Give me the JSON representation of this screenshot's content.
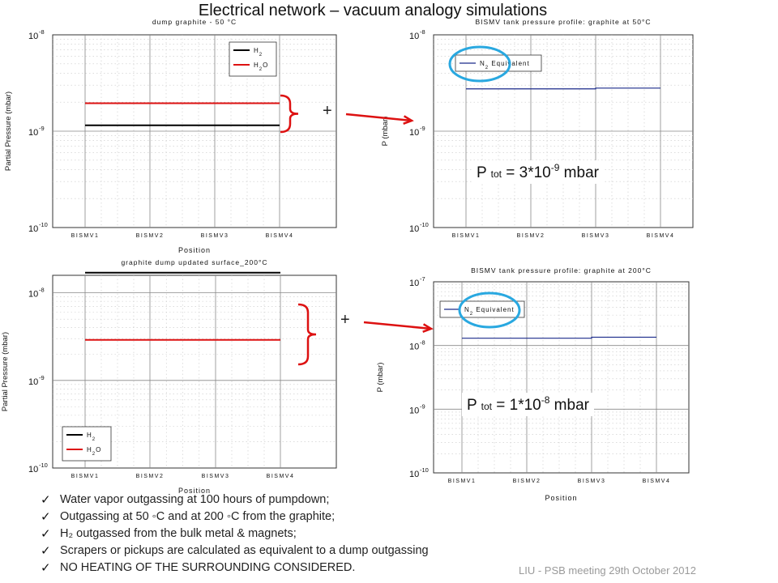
{
  "slide": {
    "title": "Electrical network – vacuum analogy simulations",
    "footer": "LIU - PSB meeting 29th October 2012",
    "plus_sign": "+",
    "ptot_top": {
      "p": "P",
      "sub": "tot",
      "eq": " = 3*10",
      "exp": "-9",
      "unit": " mbar"
    },
    "ptot_bottom": {
      "p": "P",
      "sub": "tot",
      "eq": " = 1*10",
      "exp": "-8",
      "unit": " mbar"
    },
    "bullets": [
      "Water vapor outgassing at 100 hours of pumpdown;",
      "Outgassing at 50 ◦C and at 200 ◦C from the graphite;",
      "H₂ outgassed from the bulk metal & magnets;",
      "Scrapers or pickups are calculated as equivalent to a dump outgassing",
      "NO HEATING OF THE SURROUNDING CONSIDERED."
    ],
    "check_glyph": "✓",
    "colors": {
      "h2": "#000000",
      "h2o": "#dd1111",
      "n2": "#1a2a8a",
      "arrow": "#dd1111",
      "circle": "#29a8e0"
    }
  },
  "chart_data": [
    {
      "type": "line",
      "title": "dump graphite - 50 °C",
      "xlabel": "Position",
      "ylabel": "Partial Pressure (mbar)",
      "y_scale": "log",
      "ylim_exp": [
        -10,
        -8
      ],
      "ytick_exps": [
        -10,
        -9,
        -8
      ],
      "categories": [
        "BISMV1",
        "BISMV2",
        "BISMV3",
        "BISMV4"
      ],
      "legend_position": "top-right",
      "series": [
        {
          "name": "H2",
          "legend": [
            "H",
            "2"
          ],
          "color": "#000000",
          "values": [
            1.15e-09,
            1.15e-09,
            1.15e-09,
            1.15e-09
          ]
        },
        {
          "name": "H2O",
          "legend": [
            "H",
            "2",
            "O"
          ],
          "color": "#dd1111",
          "values": [
            1.95e-09,
            1.95e-09,
            1.95e-09,
            1.95e-09
          ]
        }
      ]
    },
    {
      "type": "line",
      "title": "BISMV tank pressure profile: graphite at 50°C",
      "xlabel": "",
      "ylabel": "P (mbar)",
      "y_scale": "log",
      "ylim_exp": [
        -10,
        -8
      ],
      "ytick_exps": [
        -10,
        -9,
        -8
      ],
      "categories": [
        "BISMV1",
        "BISMV2",
        "BISMV3",
        "BISMV4"
      ],
      "legend_position": "top-left",
      "series": [
        {
          "name": "N2 Equivalent",
          "legend": [
            "N",
            "2",
            " Equivalent"
          ],
          "color": "#1a2a8a",
          "values": [
            2.75e-09,
            2.75e-09,
            2.8e-09,
            2.8e-09
          ]
        }
      ]
    },
    {
      "type": "line",
      "title": "graphite dump updated surface_200°C",
      "xlabel": "Position",
      "ylabel": "Partial Pressure (mbar)",
      "y_scale": "log",
      "ylim_exp": [
        -10,
        -7.8
      ],
      "ytick_exps": [
        -10,
        -9,
        -8
      ],
      "categories": [
        "BISMV1",
        "BISMV2",
        "BISMV3",
        "BISMV4"
      ],
      "legend_position": "bottom-left",
      "series": [
        {
          "name": "H2",
          "legend": [
            "H",
            "2"
          ],
          "color": "#000000",
          "values": [
            1.7e-08,
            1.7e-08,
            1.7e-08,
            1.72e-08
          ]
        },
        {
          "name": "H2O",
          "legend": [
            "H",
            "2",
            "O"
          ],
          "color": "#dd1111",
          "values": [
            2.9e-09,
            2.9e-09,
            2.9e-09,
            3e-09
          ]
        }
      ]
    },
    {
      "type": "line",
      "title": "BISMV tank pressure profile: graphite at 200°C",
      "xlabel": "Position",
      "ylabel": "P (mbar)",
      "y_scale": "log",
      "ylim_exp": [
        -10,
        -7
      ],
      "ytick_exps": [
        -10,
        -9,
        -8,
        -7
      ],
      "categories": [
        "BISMV1",
        "BISMV2",
        "BISMV3",
        "BISMV4"
      ],
      "legend_position": "top-left",
      "series": [
        {
          "name": "N2 Equivalent",
          "legend": [
            "N",
            "2",
            " Equivalent"
          ],
          "color": "#1a2a8a",
          "values": [
            1.3e-08,
            1.3e-08,
            1.35e-08,
            1.35e-08
          ]
        }
      ]
    }
  ]
}
